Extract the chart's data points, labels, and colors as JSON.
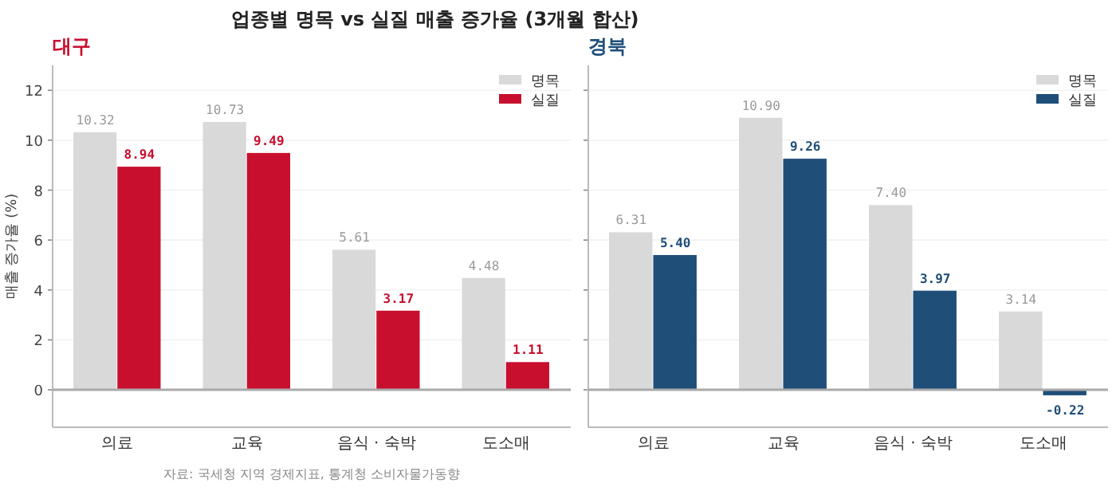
{
  "chart_data": [
    {
      "type": "bar",
      "title": "업종별 명목 vs 실질 매출 증가율 (3개월 합산)",
      "subtitle": "대구",
      "ylabel": "매출 증가율 (%)",
      "categories": [
        "의료",
        "교육",
        "음식 · 숙박",
        "도소매"
      ],
      "series": [
        {
          "name": "명목",
          "color": "#d9d9d9",
          "values": [
            10.32,
            10.73,
            5.61,
            4.48
          ],
          "value_labels": [
            "10.32",
            "10.73",
            "5.61",
            "4.48"
          ]
        },
        {
          "name": "실질",
          "color": "#c8102e",
          "values": [
            8.94,
            9.49,
            3.17,
            1.11
          ],
          "value_labels": [
            "8.94",
            "9.49",
            "3.17",
            "1.11"
          ]
        }
      ],
      "ylim": [
        -1.5,
        13
      ],
      "yticks": [
        0,
        2,
        4,
        6,
        8,
        10,
        12
      ],
      "grid": "y",
      "legend": "top right",
      "ref_lines": [
        {
          "axis": "y",
          "value": 0,
          "label": null,
          "color": "#aaaaaa"
        }
      ],
      "annotations": [
        "자료: 국세청 지역 경제지표, 통계청 소비자물가동향"
      ]
    },
    {
      "type": "bar",
      "subtitle": "경북",
      "categories": [
        "의료",
        "교육",
        "음식 · 숙박",
        "도소매"
      ],
      "series": [
        {
          "name": "명목",
          "color": "#d9d9d9",
          "values": [
            6.31,
            10.9,
            7.4,
            3.14
          ],
          "value_labels": [
            "6.31",
            "10.90",
            "7.40",
            "3.14"
          ]
        },
        {
          "name": "실질",
          "color": "#1f4e79",
          "values": [
            5.4,
            9.26,
            3.97,
            -0.22
          ],
          "value_labels": [
            "5.40",
            "9.26",
            "3.97",
            "-0.22"
          ]
        }
      ],
      "ylim": [
        -1.5,
        13
      ],
      "yticks": [
        0,
        2,
        4,
        6,
        8,
        10,
        12
      ],
      "grid": "y",
      "legend": "top right",
      "tick_labels": "x",
      "ref_lines": [
        {
          "axis": "y",
          "value": 0,
          "label": null,
          "color": "#aaaaaa"
        }
      ]
    }
  ]
}
